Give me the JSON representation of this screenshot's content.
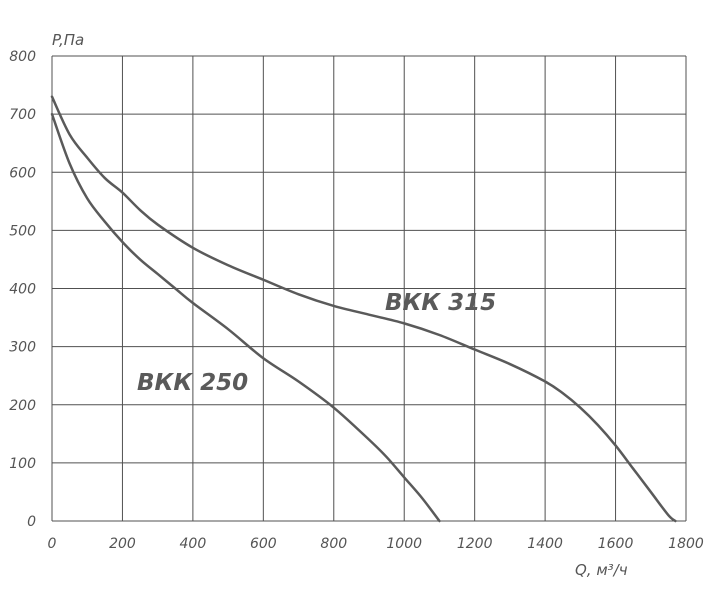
{
  "chart_data": {
    "type": "line",
    "xlabel": "Q, м³/ч",
    "ylabel": "P,Па",
    "xlim": [
      0,
      1800
    ],
    "ylim": [
      0,
      800
    ],
    "x_ticks": [
      "0",
      "200",
      "400",
      "600",
      "800",
      "1000",
      "1200",
      "1400",
      "1600",
      "1800"
    ],
    "y_ticks": [
      "0",
      "100",
      "200",
      "300",
      "400",
      "500",
      "600",
      "700",
      "800"
    ],
    "x_tick_values": [
      0,
      200,
      400,
      600,
      800,
      1000,
      1200,
      1400,
      1600,
      1800
    ],
    "y_tick_values": [
      0,
      100,
      200,
      300,
      400,
      500,
      600,
      700,
      800
    ],
    "grid": true,
    "series": [
      {
        "name": "ВКК 250",
        "color": "#5a5a5a",
        "x": [
          0,
          50,
          100,
          150,
          200,
          250,
          300,
          350,
          400,
          500,
          600,
          700,
          800,
          900,
          950,
          1000,
          1050,
          1100
        ],
        "y": [
          700,
          615,
          555,
          515,
          480,
          450,
          425,
          400,
          375,
          330,
          280,
          240,
          195,
          140,
          110,
          75,
          40,
          0
        ]
      },
      {
        "name": "ВКК 315",
        "color": "#5a5a5a",
        "x": [
          0,
          50,
          100,
          150,
          200,
          250,
          300,
          400,
          500,
          600,
          700,
          800,
          900,
          1000,
          1100,
          1200,
          1300,
          1400,
          1450,
          1500,
          1550,
          1600,
          1650,
          1700,
          1750,
          1770
        ],
        "y": [
          730,
          665,
          625,
          590,
          565,
          535,
          510,
          470,
          440,
          415,
          390,
          370,
          355,
          340,
          320,
          295,
          270,
          240,
          220,
          195,
          165,
          130,
          90,
          50,
          10,
          0
        ]
      }
    ]
  }
}
